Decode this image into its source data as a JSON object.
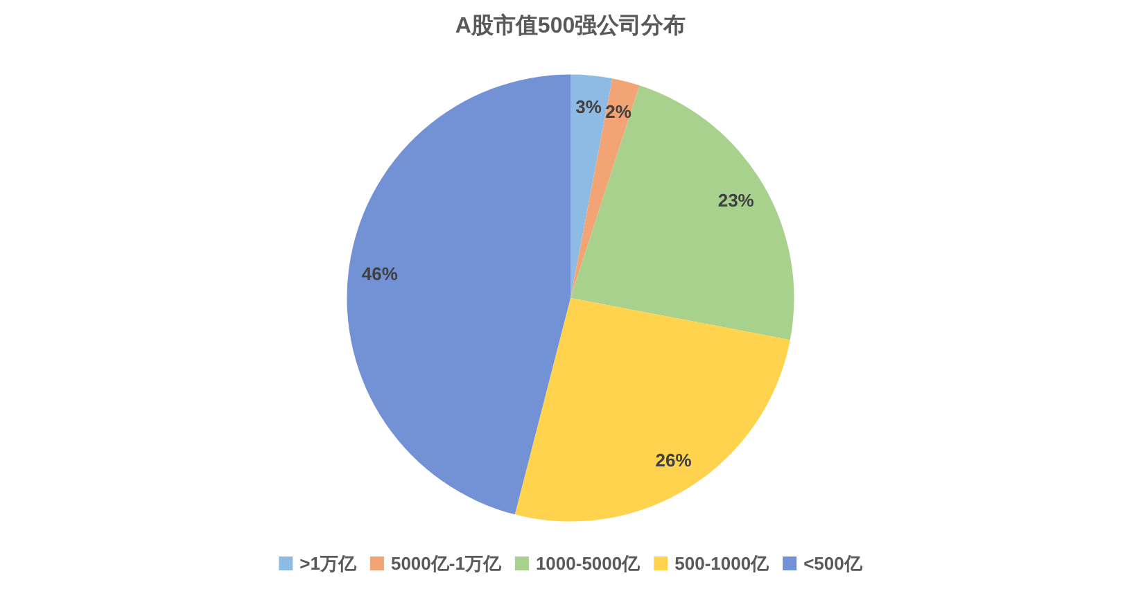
{
  "chart_data": {
    "type": "pie",
    "title": "A股市值500强公司分布",
    "categories": [
      ">1万亿",
      "5000亿-1万亿",
      "1000-5000亿",
      "500-1000亿",
      "<500亿"
    ],
    "values": [
      3,
      2,
      23,
      26,
      46
    ],
    "value_labels": [
      "3%",
      "2%",
      "23%",
      "26%",
      "46%"
    ],
    "colors": [
      "#8dbbe3",
      "#f3a474",
      "#a9d18e",
      "#ffd34d",
      "#7392d6"
    ],
    "legend": "bottom"
  }
}
